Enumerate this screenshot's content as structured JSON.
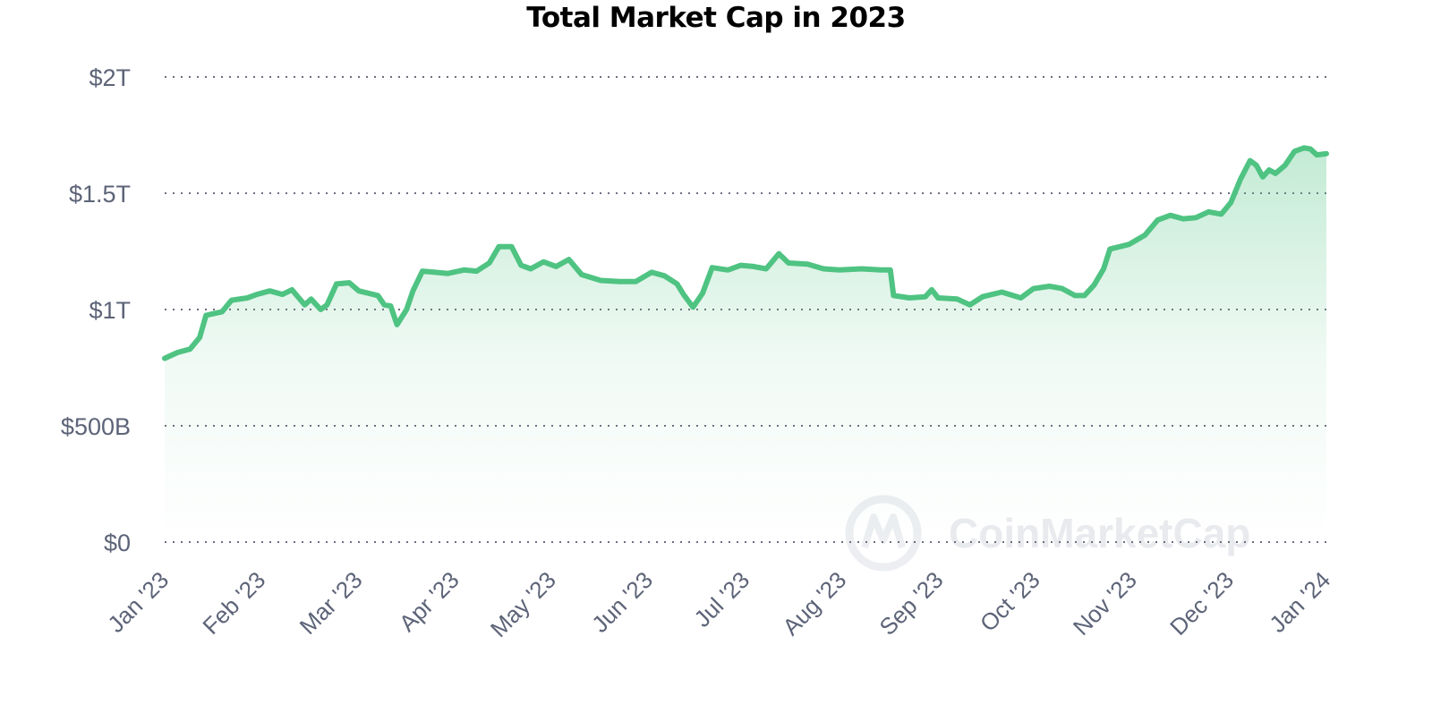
{
  "chart_data": {
    "type": "area",
    "title": "Total Market Cap in 2023",
    "xlabel": "",
    "ylabel": "",
    "yticks": [
      {
        "value": 0,
        "label": "$0"
      },
      {
        "value": 500,
        "label": "$500B"
      },
      {
        "value": 1000,
        "label": "$1T"
      },
      {
        "value": 1500,
        "label": "$1.5T"
      },
      {
        "value": 2000,
        "label": "$2T"
      }
    ],
    "ylim": [
      0,
      2000
    ],
    "y_unit": "billion USD",
    "xticks": [
      "Jan '23",
      "Feb '23",
      "Mar '23",
      "Apr '23",
      "May '23",
      "Jun '23",
      "Jul '23",
      "Aug '23",
      "Sep '23",
      "Oct '23",
      "Nov '23",
      "Dec '23",
      "Jan '24"
    ],
    "xlim": [
      "2023-01-01",
      "2024-01-01"
    ],
    "grid": true,
    "line_color": "#4fc382",
    "area_fill": "#d9f3e5",
    "watermark": "CoinMarketCap",
    "series": [
      {
        "name": "",
        "points": [
          [
            "2023-01-01",
            790
          ],
          [
            "2023-01-05",
            815
          ],
          [
            "2023-01-09",
            830
          ],
          [
            "2023-01-12",
            880
          ],
          [
            "2023-01-14",
            975
          ],
          [
            "2023-01-19",
            990
          ],
          [
            "2023-01-22",
            1040
          ],
          [
            "2023-01-27",
            1050
          ],
          [
            "2023-01-30",
            1065
          ],
          [
            "2023-02-03",
            1080
          ],
          [
            "2023-02-07",
            1065
          ],
          [
            "2023-02-10",
            1085
          ],
          [
            "2023-02-14",
            1020
          ],
          [
            "2023-02-16",
            1045
          ],
          [
            "2023-02-19",
            1000
          ],
          [
            "2023-02-21",
            1020
          ],
          [
            "2023-02-24",
            1110
          ],
          [
            "2023-02-28",
            1115
          ],
          [
            "2023-03-03",
            1080
          ],
          [
            "2023-03-06",
            1070
          ],
          [
            "2023-03-09",
            1060
          ],
          [
            "2023-03-11",
            1020
          ],
          [
            "2023-03-13",
            1015
          ],
          [
            "2023-03-15",
            935
          ],
          [
            "2023-03-18",
            1000
          ],
          [
            "2023-03-20",
            1080
          ],
          [
            "2023-03-23",
            1165
          ],
          [
            "2023-03-27",
            1160
          ],
          [
            "2023-03-31",
            1155
          ],
          [
            "2023-04-05",
            1170
          ],
          [
            "2023-04-09",
            1165
          ],
          [
            "2023-04-13",
            1200
          ],
          [
            "2023-04-16",
            1270
          ],
          [
            "2023-04-20",
            1270
          ],
          [
            "2023-04-23",
            1190
          ],
          [
            "2023-04-26",
            1175
          ],
          [
            "2023-04-30",
            1205
          ],
          [
            "2023-05-04",
            1185
          ],
          [
            "2023-05-08",
            1215
          ],
          [
            "2023-05-12",
            1150
          ],
          [
            "2023-05-18",
            1125
          ],
          [
            "2023-05-24",
            1120
          ],
          [
            "2023-05-29",
            1120
          ],
          [
            "2023-06-03",
            1160
          ],
          [
            "2023-06-07",
            1145
          ],
          [
            "2023-06-11",
            1110
          ],
          [
            "2023-06-13",
            1065
          ],
          [
            "2023-06-16",
            1010
          ],
          [
            "2023-06-19",
            1070
          ],
          [
            "2023-06-22",
            1180
          ],
          [
            "2023-06-27",
            1170
          ],
          [
            "2023-07-01",
            1190
          ],
          [
            "2023-07-05",
            1185
          ],
          [
            "2023-07-09",
            1175
          ],
          [
            "2023-07-13",
            1240
          ],
          [
            "2023-07-16",
            1200
          ],
          [
            "2023-07-22",
            1195
          ],
          [
            "2023-07-27",
            1175
          ],
          [
            "2023-08-01",
            1170
          ],
          [
            "2023-08-08",
            1175
          ],
          [
            "2023-08-14",
            1170
          ],
          [
            "2023-08-17",
            1170
          ],
          [
            "2023-08-18",
            1060
          ],
          [
            "2023-08-23",
            1050
          ],
          [
            "2023-08-28",
            1055
          ],
          [
            "2023-08-30",
            1085
          ],
          [
            "2023-09-01",
            1050
          ],
          [
            "2023-09-07",
            1045
          ],
          [
            "2023-09-11",
            1020
          ],
          [
            "2023-09-15",
            1055
          ],
          [
            "2023-09-21",
            1075
          ],
          [
            "2023-09-27",
            1050
          ],
          [
            "2023-10-01",
            1090
          ],
          [
            "2023-10-06",
            1100
          ],
          [
            "2023-10-10",
            1090
          ],
          [
            "2023-10-14",
            1060
          ],
          [
            "2023-10-17",
            1060
          ],
          [
            "2023-10-20",
            1105
          ],
          [
            "2023-10-23",
            1175
          ],
          [
            "2023-10-25",
            1260
          ],
          [
            "2023-10-31",
            1280
          ],
          [
            "2023-11-05",
            1320
          ],
          [
            "2023-11-09",
            1385
          ],
          [
            "2023-11-13",
            1405
          ],
          [
            "2023-11-17",
            1390
          ],
          [
            "2023-11-21",
            1395
          ],
          [
            "2023-11-25",
            1420
          ],
          [
            "2023-11-29",
            1410
          ],
          [
            "2023-12-02",
            1460
          ],
          [
            "2023-12-05",
            1560
          ],
          [
            "2023-12-08",
            1640
          ],
          [
            "2023-12-10",
            1620
          ],
          [
            "2023-12-12",
            1570
          ],
          [
            "2023-12-14",
            1600
          ],
          [
            "2023-12-16",
            1585
          ],
          [
            "2023-12-19",
            1620
          ],
          [
            "2023-12-22",
            1680
          ],
          [
            "2023-12-25",
            1695
          ],
          [
            "2023-12-27",
            1690
          ],
          [
            "2023-12-29",
            1665
          ],
          [
            "2024-01-01",
            1670
          ]
        ]
      }
    ]
  }
}
